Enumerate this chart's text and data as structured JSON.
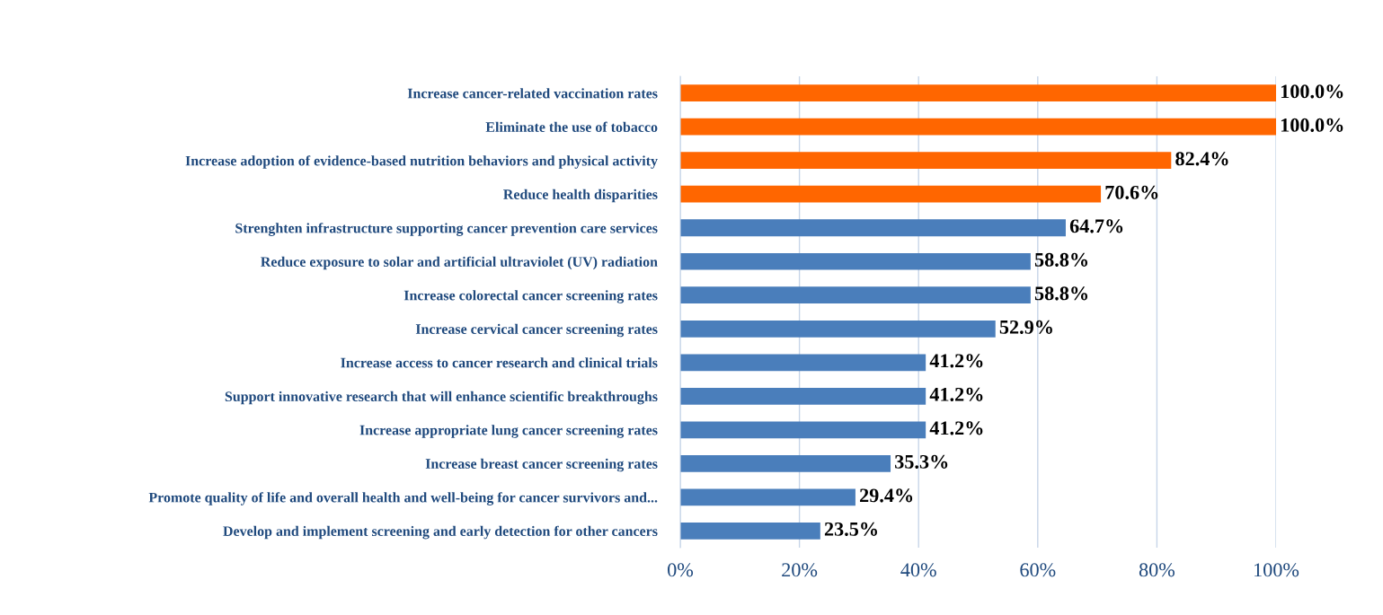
{
  "chart_data": {
    "type": "bar",
    "orientation": "horizontal",
    "categories": [
      "Increase cancer-related vaccination rates",
      "Eliminate the use of tobacco",
      "Increase adoption of evidence-based nutrition behaviors and physical activity",
      "Reduce health disparities",
      "Strenghten infrastructure supporting cancer prevention care services",
      "Reduce exposure to solar and artificial ultraviolet (UV) radiation",
      "Increase colorectal cancer screening rates",
      "Increase cervical cancer screening rates",
      "Increase access to cancer research and clinical trials",
      "Support innovative research that will enhance scientific breakthroughs",
      "Increase appropriate lung cancer screening rates",
      "Increase breast cancer screening rates",
      "Promote quality of life and overall health and well-being for cancer survivors and...",
      "Develop and implement screening and early detection for other cancers"
    ],
    "values": [
      100.0,
      100.0,
      82.4,
      70.6,
      64.7,
      58.8,
      58.8,
      52.9,
      41.2,
      41.2,
      41.2,
      35.3,
      29.4,
      23.5
    ],
    "value_labels": [
      "100.0%",
      "100.0%",
      "82.4%",
      "70.6%",
      "64.7%",
      "58.8%",
      "58.8%",
      "52.9%",
      "41.2%",
      "41.2%",
      "41.2%",
      "35.3%",
      "29.4%",
      "23.5%"
    ],
    "colors": [
      "#ff6600",
      "#ff6600",
      "#ff6600",
      "#ff6600",
      "#4a7ebb",
      "#4a7ebb",
      "#4a7ebb",
      "#4a7ebb",
      "#4a7ebb",
      "#4a7ebb",
      "#4a7ebb",
      "#4a7ebb",
      "#4a7ebb",
      "#4a7ebb"
    ],
    "xlim": [
      0,
      100
    ],
    "xticks": [
      {
        "value": 0,
        "label": "0%"
      },
      {
        "value": 20,
        "label": "20%"
      },
      {
        "value": 40,
        "label": "40%"
      },
      {
        "value": 60,
        "label": "60%"
      },
      {
        "value": 80,
        "label": "80%"
      },
      {
        "value": 100,
        "label": "100%"
      }
    ],
    "grid": "x"
  }
}
